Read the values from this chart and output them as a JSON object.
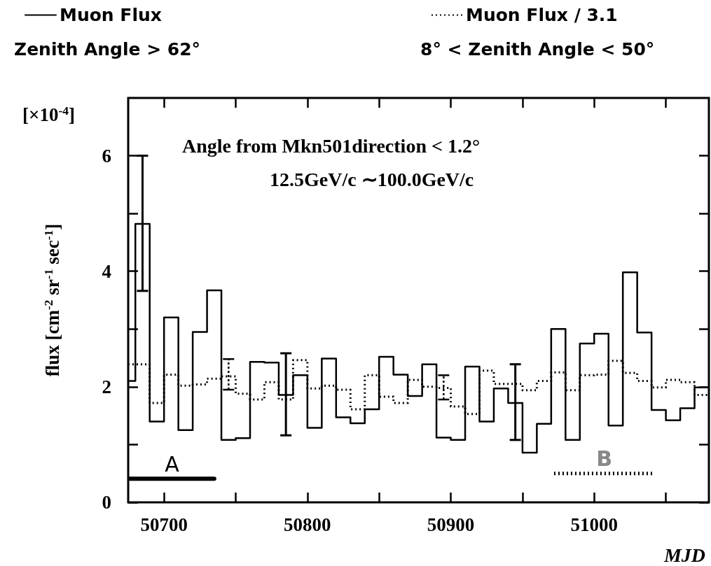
{
  "chart_data": {
    "type": "step",
    "xlabel": "MJD",
    "ylabel": "flux [cm$^{-2}$ sr$^{-1}$ sec$^{-1}$]",
    "annotations": [
      "Zenith Angle > 62°",
      "8° < Zenith Angle < 50°",
      "[×10$^{-4}$]",
      "Angle from Mkn501direction < 1.2°",
      "12.5GeV/c ∼100.0GeV/c"
    ],
    "x": [
      50675,
      50685,
      50695,
      50705,
      50715,
      50725,
      50735,
      50745,
      50755,
      50765,
      50775,
      50785,
      50795,
      50805,
      50815,
      50825,
      50835,
      50845,
      50855,
      50865,
      50875,
      50885,
      50895,
      50905,
      50915,
      50925,
      50935,
      50945,
      50955,
      50965,
      50975,
      50985,
      50995,
      51005,
      51015,
      51025,
      51035,
      51045,
      51055,
      51065,
      51075,
      51080
    ],
    "series": [
      {
        "name": "Muon Flux",
        "color": "#000000",
        "line_style": "solid",
        "values": [
          2.1,
          4.82,
          1.4,
          3.2,
          1.25,
          2.95,
          3.67,
          1.08,
          1.11,
          2.43,
          2.42,
          1.86,
          2.2,
          1.29,
          2.49,
          1.47,
          1.37,
          1.61,
          2.52,
          2.21,
          1.84,
          2.39,
          1.12,
          1.08,
          2.35,
          1.4,
          1.97,
          1.72,
          0.86,
          1.36,
          3.0,
          1.08,
          2.75,
          2.92,
          1.33,
          3.98,
          2.94,
          1.6,
          1.42,
          1.63,
          1.99,
          1.99
        ],
        "errors": [
          null,
          [
            3.66,
            6.0
          ],
          null,
          null,
          null,
          null,
          null,
          null,
          null,
          null,
          null,
          [
            1.16,
            2.58
          ],
          null,
          null,
          null,
          null,
          null,
          null,
          null,
          null,
          null,
          null,
          null,
          null,
          null,
          null,
          null,
          [
            1.08,
            2.39
          ],
          null,
          null,
          null,
          null,
          null,
          null,
          null,
          null,
          null,
          null,
          null,
          null,
          null,
          null
        ]
      },
      {
        "name": "Muon Flux / 3.1",
        "color": "#000000",
        "line_style": "dotted",
        "values": [
          2.39,
          2.39,
          1.72,
          2.21,
          2.02,
          2.04,
          2.14,
          2.18,
          1.88,
          1.78,
          2.08,
          1.78,
          2.46,
          1.97,
          2.02,
          1.95,
          1.61,
          2.2,
          1.83,
          1.72,
          2.12,
          2.0,
          1.98,
          1.66,
          1.53,
          2.28,
          2.05,
          2.05,
          1.94,
          2.1,
          2.25,
          1.94,
          2.2,
          2.21,
          2.45,
          2.24,
          2.1,
          1.99,
          2.12,
          2.08,
          1.86,
          1.86
        ],
        "errors": [
          null,
          null,
          null,
          null,
          null,
          null,
          null,
          [
            1.95,
            2.48
          ],
          null,
          null,
          null,
          null,
          null,
          null,
          null,
          null,
          null,
          null,
          null,
          null,
          null,
          null,
          [
            1.78,
            2.2
          ],
          null,
          null,
          null,
          null,
          null,
          null,
          null,
          null,
          null,
          null,
          null,
          null,
          null,
          null,
          null,
          null,
          null,
          null,
          null
        ]
      },
      {
        "name": "A",
        "type": "line",
        "color": "#000000",
        "line_style": "solid",
        "x": [
          50676,
          50735
        ],
        "values": [
          0.41,
          0.41
        ]
      },
      {
        "name": "B",
        "type": "line",
        "color": "#000000",
        "line_style": "dotted",
        "x": [
          50972,
          51042
        ],
        "values": [
          0.5,
          0.5
        ]
      }
    ],
    "xlim": [
      50675,
      51080
    ],
    "xticks": [
      50700,
      {
        "value": 50750,
        "label": null
      },
      50800,
      {
        "value": 50850,
        "label": null
      },
      50900,
      {
        "value": 50950,
        "label": null
      },
      51000,
      {
        "value": 51050,
        "label": null
      }
    ],
    "ylim": [
      0,
      7
    ],
    "yticks": [
      0,
      {
        "value": 1,
        "label": null
      },
      2,
      {
        "value": 3,
        "label": null
      },
      4,
      {
        "value": 5,
        "label": null
      },
      6
    ],
    "grid": false,
    "legend": "top",
    "marker": "none"
  }
}
